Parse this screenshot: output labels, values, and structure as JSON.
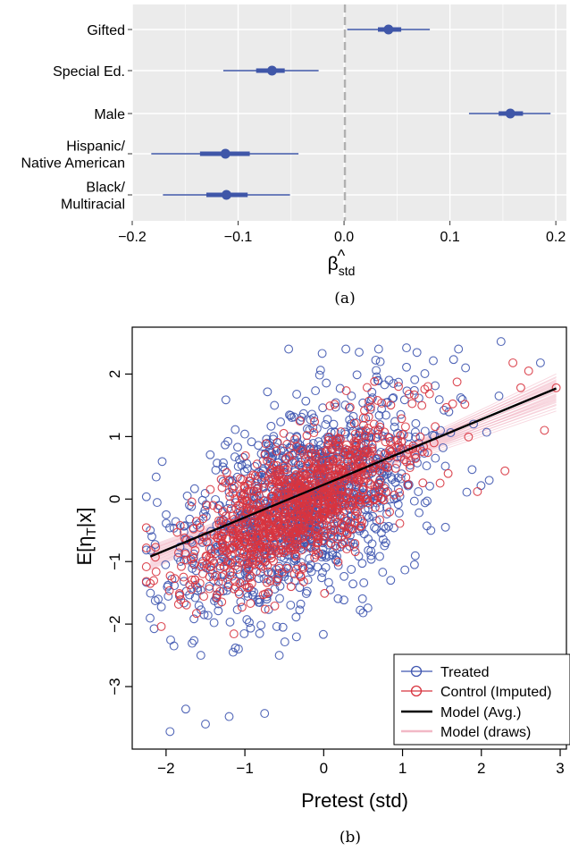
{
  "chart_data": [
    {
      "type": "forest",
      "panel_label": "(a)",
      "xlabel_main": "β",
      "xlabel_hat": "^",
      "xlabel_sub": "std",
      "xlim": [
        -0.2,
        0.21
      ],
      "xticks": [
        -0.2,
        -0.1,
        0.0,
        0.1,
        0.2
      ],
      "xtick_labels": [
        "−0.2",
        "−0.1",
        "0.0",
        "0.1",
        "0.2"
      ],
      "reference_line": 0,
      "point_color": "#3f56a8",
      "rows": [
        {
          "label": [
            "Gifted"
          ],
          "estimate": 0.042,
          "lo50": 0.032,
          "hi50": 0.054,
          "lo95": 0.003,
          "hi95": 0.081
        },
        {
          "label": [
            "Special Ed."
          ],
          "estimate": -0.068,
          "lo50": -0.083,
          "hi50": -0.056,
          "lo95": -0.114,
          "hi95": -0.024
        },
        {
          "label": [
            "Male"
          ],
          "estimate": 0.157,
          "lo50": 0.146,
          "hi50": 0.169,
          "lo95": 0.118,
          "hi95": 0.195
        },
        {
          "label": [
            "Hispanic/",
            "Native American"
          ],
          "estimate": -0.112,
          "lo50": -0.136,
          "hi50": -0.089,
          "lo95": -0.182,
          "hi95": -0.043
        },
        {
          "label": [
            "Black/",
            "Multiracial"
          ],
          "estimate": -0.111,
          "lo50": -0.13,
          "hi50": -0.091,
          "lo95": -0.171,
          "hi95": -0.051
        }
      ]
    },
    {
      "type": "scatter",
      "panel_label": "(b)",
      "xlabel": "Pretest (std)",
      "ylabel_prefix": "E[η",
      "ylabel_sub": "T",
      "ylabel_suffix": "|x]",
      "xlim": [
        -2.35,
        3.0
      ],
      "ylim": [
        -3.9,
        2.65
      ],
      "xticks": [
        -2,
        -1,
        0,
        1,
        2,
        3
      ],
      "xtick_labels": [
        "−2",
        "−1",
        "0",
        "1",
        "2",
        "3"
      ],
      "yticks": [
        -3,
        -2,
        -1,
        0,
        1,
        2
      ],
      "ytick_labels": [
        "−3",
        "−2",
        "−1",
        "0",
        "1",
        "2"
      ],
      "series": [
        {
          "name": "Treated",
          "color": "#3f56b0",
          "points": [
            [
              -1.95,
              -3.72
            ],
            [
              -1.75,
              -3.36
            ],
            [
              -1.5,
              -3.6
            ],
            [
              -1.2,
              -3.48
            ],
            [
              -0.75,
              -3.43
            ],
            [
              2.25,
              2.52
            ],
            [
              1.05,
              2.42
            ],
            [
              -0.02,
              2.33
            ],
            [
              0.45,
              2.35
            ],
            [
              1.8,
              2.1
            ],
            [
              -2.2,
              -0.5
            ],
            [
              -2.1,
              -1.6
            ],
            [
              -1.9,
              -2.35
            ],
            [
              0.5,
              -1.82
            ],
            [
              0.85,
              -1.3
            ],
            [
              2.75,
              2.18
            ],
            [
              -1.15,
              -2.45
            ],
            [
              1.9,
              1.2
            ],
            [
              2.1,
              0.3
            ],
            [
              -2.05,
              0.6
            ]
          ],
          "cloud": {
            "n": 1250,
            "seed": 17,
            "x_mean": -0.25,
            "x_sd": 0.75,
            "slope": 0.6,
            "intercept": 0.1,
            "resid_sd": 0.72
          }
        },
        {
          "name": "Control (Imputed)",
          "color": "#d8343f",
          "points": [
            [
              2.4,
              2.18
            ],
            [
              2.5,
              1.78
            ],
            [
              2.95,
              1.78
            ],
            [
              2.3,
              0.45
            ],
            [
              1.95,
              0.12
            ],
            [
              2.6,
              2.05
            ],
            [
              1.4,
              0.9
            ],
            [
              -2.2,
              -1.35
            ],
            [
              2.8,
              1.1
            ]
          ],
          "cloud": {
            "n": 1100,
            "seed": 91,
            "x_mean": -0.3,
            "x_sd": 0.72,
            "slope": 0.65,
            "intercept": 0.1,
            "resid_sd": 0.5
          }
        }
      ],
      "model_avg": {
        "name": "Model (Avg.)",
        "color": "#000000",
        "x": [
          -2.2,
          2.95
        ],
        "y": [
          -0.92,
          1.77
        ]
      },
      "model_draws": {
        "name": "Model (draws)",
        "color": "#f2b8c6",
        "n": 30,
        "pivot_x": 0.0,
        "pivot_y": 0.2,
        "slope_min": 0.43,
        "slope_max": 0.6
      }
    }
  ]
}
